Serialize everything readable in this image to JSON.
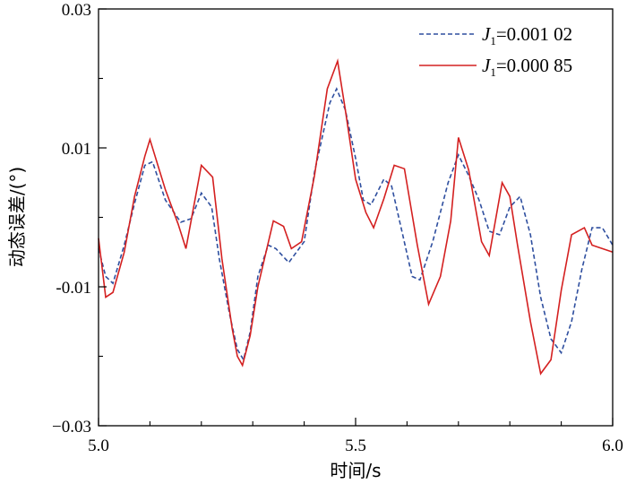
{
  "chart_data": {
    "type": "line",
    "xlabel": "时间/s",
    "ylabel": "动态误差/(°)",
    "xlim": [
      5.0,
      6.0
    ],
    "ylim": [
      -0.03,
      0.03
    ],
    "xticks": [
      5.0,
      5.5,
      6.0
    ],
    "xtick_labels": [
      "5.0",
      "5.5",
      "6.0"
    ],
    "xticks_minor": [
      5.1,
      5.2,
      5.3,
      5.4,
      5.6,
      5.7,
      5.8,
      5.9
    ],
    "yticks": [
      -0.03,
      -0.01,
      0.01,
      0.03
    ],
    "ytick_labels": [
      "−0.03",
      "-0.01",
      "0.01",
      "0.03"
    ],
    "yticks_minor": [
      -0.02,
      0.0,
      0.02
    ],
    "grid": false,
    "legend_position": "top-right",
    "series": [
      {
        "name_var": "J",
        "name_sub": "1",
        "name_value": "=0.001 02",
        "color": "#2f4f9f",
        "dash": "dashed",
        "x": [
          5.0,
          5.014,
          5.028,
          5.05,
          5.07,
          5.09,
          5.105,
          5.13,
          5.16,
          5.18,
          5.2,
          5.22,
          5.235,
          5.255,
          5.27,
          5.282,
          5.295,
          5.31,
          5.33,
          5.345,
          5.37,
          5.385,
          5.4,
          5.42,
          5.45,
          5.463,
          5.48,
          5.5,
          5.515,
          5.53,
          5.555,
          5.57,
          5.59,
          5.61,
          5.625,
          5.65,
          5.68,
          5.7,
          5.72,
          5.74,
          5.76,
          5.78,
          5.8,
          5.82,
          5.84,
          5.86,
          5.88,
          5.9,
          5.92,
          5.94,
          5.96,
          5.98,
          6.0
        ],
        "y": [
          -0.0045,
          -0.0085,
          -0.0095,
          -0.004,
          0.002,
          0.0075,
          0.008,
          0.0025,
          -0.0007,
          -0.0002,
          0.0035,
          0.0015,
          -0.006,
          -0.014,
          -0.019,
          -0.0205,
          -0.0165,
          -0.0085,
          -0.004,
          -0.0045,
          -0.0065,
          -0.005,
          -0.0035,
          0.0065,
          0.0165,
          0.0185,
          0.0155,
          0.0085,
          0.0025,
          0.0018,
          0.0055,
          0.0045,
          -0.002,
          -0.0085,
          -0.009,
          -0.0035,
          0.005,
          0.009,
          0.006,
          0.0025,
          -0.002,
          -0.0025,
          0.0015,
          0.003,
          -0.0025,
          -0.0115,
          -0.0175,
          -0.0195,
          -0.015,
          -0.0075,
          -0.0015,
          -0.0015,
          -0.004
        ]
      },
      {
        "name_var": "J",
        "name_sub": "1",
        "name_value": "=0.000 85",
        "color": "#d42020",
        "dash": "solid",
        "x": [
          5.0,
          5.014,
          5.028,
          5.05,
          5.07,
          5.09,
          5.1,
          5.13,
          5.155,
          5.17,
          5.2,
          5.222,
          5.24,
          5.26,
          5.27,
          5.28,
          5.295,
          5.31,
          5.34,
          5.36,
          5.375,
          5.395,
          5.42,
          5.445,
          5.465,
          5.48,
          5.5,
          5.52,
          5.535,
          5.555,
          5.575,
          5.595,
          5.62,
          5.642,
          5.665,
          5.685,
          5.7,
          5.72,
          5.745,
          5.76,
          5.785,
          5.8,
          5.815,
          5.84,
          5.86,
          5.88,
          5.9,
          5.92,
          5.945,
          5.96,
          5.98,
          6.0
        ],
        "y": [
          -0.003,
          -0.0115,
          -0.0108,
          -0.005,
          0.003,
          0.0088,
          0.0112,
          0.004,
          -0.001,
          -0.0045,
          0.0075,
          0.0058,
          -0.006,
          -0.016,
          -0.02,
          -0.0213,
          -0.017,
          -0.01,
          -0.0005,
          -0.0013,
          -0.0045,
          -0.0035,
          0.006,
          0.0185,
          0.0225,
          0.0155,
          0.0055,
          0.0007,
          -0.0015,
          0.0027,
          0.0075,
          0.007,
          -0.004,
          -0.0125,
          -0.0085,
          -0.0005,
          0.0115,
          0.0068,
          -0.0035,
          -0.0055,
          0.005,
          0.003,
          -0.004,
          -0.015,
          -0.0225,
          -0.0205,
          -0.0105,
          -0.0025,
          -0.0015,
          -0.004,
          -0.0045,
          -0.005
        ]
      }
    ]
  }
}
